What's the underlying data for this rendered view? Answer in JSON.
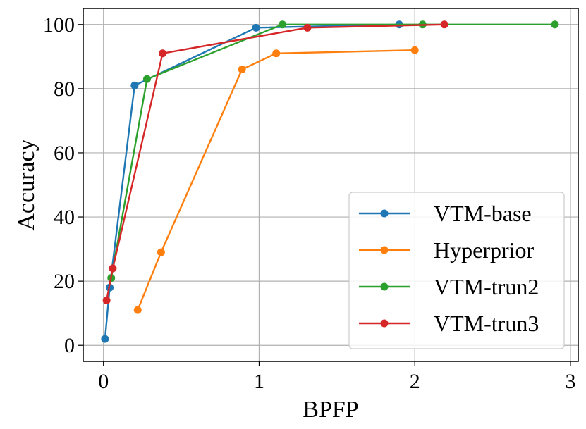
{
  "chart_data": {
    "type": "line",
    "title": "",
    "xlabel": "BPFP",
    "ylabel": "Accuracy",
    "xlim": [
      -0.13,
      3.05
    ],
    "ylim": [
      -5,
      105
    ],
    "xticks": [
      0,
      1,
      2,
      3
    ],
    "xtick_labels": [
      "0",
      "1",
      "2",
      "3"
    ],
    "yticks": [
      0,
      20,
      40,
      60,
      80,
      100
    ],
    "ytick_labels": [
      "0",
      "20",
      "40",
      "60",
      "80",
      "100"
    ],
    "grid": true,
    "legend_position": "lower-right",
    "series": [
      {
        "name": "VTM-base",
        "color": "#1f77b4",
        "x": [
          0.01,
          0.04,
          0.2,
          0.98,
          1.9
        ],
        "y": [
          2,
          18,
          81,
          99,
          100
        ]
      },
      {
        "name": "Hyperprior",
        "color": "#ff7f0e",
        "x": [
          0.22,
          0.37,
          0.89,
          1.11,
          2.0
        ],
        "y": [
          11,
          29,
          86,
          91,
          92
        ]
      },
      {
        "name": "VTM-trun2",
        "color": "#2ca02c",
        "x": [
          0.05,
          0.28,
          1.15,
          2.05,
          2.9
        ],
        "y": [
          21,
          83,
          100,
          100,
          100
        ]
      },
      {
        "name": "VTM-trun3",
        "color": "#d62728",
        "x": [
          0.02,
          0.06,
          0.38,
          1.31,
          2.19
        ],
        "y": [
          14,
          24,
          91,
          99,
          100
        ]
      }
    ]
  }
}
